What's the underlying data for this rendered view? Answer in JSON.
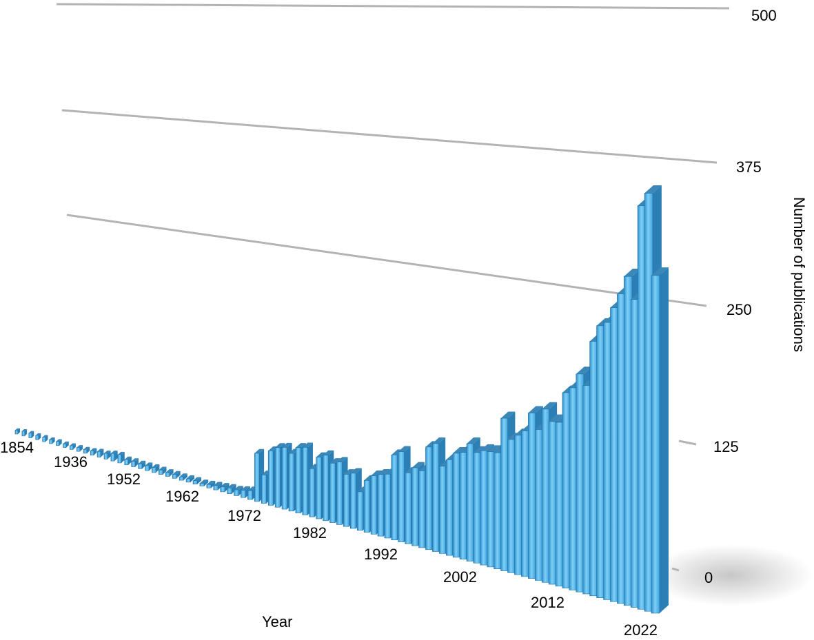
{
  "chart_data": {
    "type": "bar",
    "title": "",
    "xlabel": "Year",
    "ylabel": "Number of publications",
    "ylim": [
      0,
      500
    ],
    "y_ticks": [
      0,
      125,
      250,
      375,
      500
    ],
    "x_tick_labels": [
      "1854",
      "1936",
      "1952",
      "1962",
      "1972",
      "1982",
      "1992",
      "2002",
      "2012",
      "2022"
    ],
    "grid": true,
    "style": "3d-perspective",
    "bar_color": "#4aaee6",
    "categories": [
      "1854",
      "1930",
      "1931",
      "1932",
      "1933",
      "1934",
      "1935",
      "1936",
      "1937",
      "1938",
      "1939",
      "1940",
      "1941",
      "1942",
      "1943",
      "1944",
      "1945",
      "1946",
      "1947",
      "1948",
      "1949",
      "1950",
      "1951",
      "1952",
      "1953",
      "1954",
      "1955",
      "1956",
      "1957",
      "1958",
      "1959",
      "1960",
      "1961",
      "1962",
      "1963",
      "1964",
      "1965",
      "1966",
      "1967",
      "1968",
      "1969",
      "1970",
      "1971",
      "1972",
      "1973",
      "1974",
      "1975",
      "1976",
      "1977",
      "1978",
      "1979",
      "1980",
      "1981",
      "1982",
      "1983",
      "1984",
      "1985",
      "1986",
      "1987",
      "1988",
      "1989",
      "1990",
      "1991",
      "1992",
      "1993",
      "1994",
      "1995",
      "1996",
      "1997",
      "1998",
      "1999",
      "2000",
      "2001",
      "2002",
      "2003",
      "2004",
      "2005",
      "2006",
      "2007",
      "2008",
      "2009",
      "2010",
      "2011",
      "2012",
      "2013",
      "2014",
      "2015",
      "2016",
      "2017",
      "2018",
      "2019",
      "2020",
      "2021",
      "2022"
    ],
    "values": [
      8,
      10,
      10,
      9,
      9,
      8,
      8,
      7,
      7,
      7,
      7,
      8,
      10,
      10,
      13,
      14,
      9,
      9,
      8,
      8,
      8,
      7,
      6,
      6,
      5,
      5,
      5,
      4,
      5,
      6,
      7,
      8,
      8,
      10,
      12,
      65,
      38,
      72,
      78,
      80,
      74,
      83,
      85,
      60,
      76,
      80,
      72,
      75,
      62,
      65,
      45,
      60,
      67,
      70,
      72,
      95,
      100,
      78,
      85,
      83,
      110,
      115,
      92,
      100,
      108,
      110,
      120,
      112,
      115,
      115,
      115,
      150,
      130,
      135,
      140,
      158,
      143,
      163,
      152,
      152,
      180,
      185,
      198,
      188,
      228,
      242,
      245,
      258,
      270,
      285,
      265,
      345,
      355,
      285
    ]
  }
}
